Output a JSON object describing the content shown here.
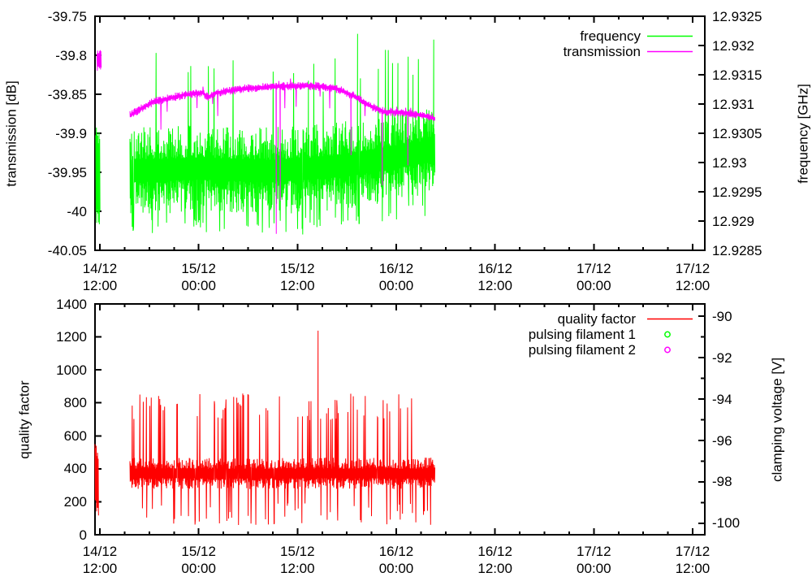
{
  "page": {
    "background": "#ffffff"
  },
  "colors": {
    "frequency": "#00ff00",
    "transmission": "#ff00ff",
    "quality_factor": "#ff0000",
    "pulsing_filament_1": "#00ff00",
    "pulsing_filament_2": "#ff00ff",
    "axis": "#000000"
  },
  "chart_data": [
    {
      "type": "line",
      "panel": "top",
      "title": "",
      "ylabel": "transmission [dB]",
      "y2label": "frequency [GHz]",
      "ylim": [
        -40.05,
        -39.75
      ],
      "y2lim": [
        12.9285,
        12.9325
      ],
      "yticks": [
        "-39.75",
        "-39.8",
        "-39.85",
        "-39.9",
        "-39.95",
        "-40",
        "-40.05"
      ],
      "y2ticks": [
        "12.9325",
        "12.932",
        "12.9315",
        "12.931",
        "12.9305",
        "12.93",
        "12.9295",
        "12.929",
        "12.9285"
      ],
      "xticks": [
        [
          "14/12",
          "12:00"
        ],
        [
          "15/12",
          "00:00"
        ],
        [
          "15/12",
          "12:00"
        ],
        [
          "16/12",
          "00:00"
        ],
        [
          "16/12",
          "12:00"
        ],
        [
          "17/12",
          "00:00"
        ],
        [
          "17/12",
          "12:00"
        ]
      ],
      "x_minor_per_major": 3,
      "grid": false,
      "legend_position": "top-right-inside",
      "legend": [
        {
          "label": "frequency",
          "style": "line",
          "color": "#00ff00"
        },
        {
          "label": "transmission",
          "style": "line",
          "color": "#ff00ff"
        }
      ],
      "series": [
        {
          "name": "frequency",
          "axis": "y2",
          "color": "#00ff00",
          "burst": {
            "hours": [
              -0.5,
              0.05
            ],
            "range": [
              12.9289,
              12.9307
            ]
          },
          "hours": [
            3.65,
            40.7
          ],
          "center_points": [
            [
              3.65,
              12.92985
            ],
            [
              12,
              12.9299
            ],
            [
              20,
              12.92985
            ],
            [
              28,
              12.92992
            ],
            [
              31,
              12.92998
            ],
            [
              34,
              12.93005
            ],
            [
              37,
              12.93012
            ],
            [
              40.7,
              12.9302
            ]
          ],
          "noise": {
            "halfwidth": 0.00075,
            "base": 0.25,
            "pow": 1.6,
            "p_up": 0.025,
            "up_mul": [
              1.7,
              2.7
            ],
            "p_down": 0.05,
            "down_mul": [
              1.1,
              1.5
            ]
          },
          "peaks": [
            [
              25.3,
              12.9314
            ],
            [
              31.3,
              12.9322
            ],
            [
              33.8,
              12.9316
            ],
            [
              36.2,
              12.9317
            ],
            [
              38.0,
              12.9315
            ],
            [
              40.55,
              12.9321
            ]
          ]
        },
        {
          "name": "transmission",
          "axis": "y1",
          "color": "#ff00ff",
          "burst": {
            "hours": [
              -0.35,
              0.2
            ],
            "range": [
              -39.82,
              -39.793
            ]
          },
          "hours": [
            3.65,
            40.7
          ],
          "center_points": [
            [
              3.65,
              -39.877
            ],
            [
              5.1,
              -39.868
            ],
            [
              6.6,
              -39.859
            ],
            [
              8.1,
              -39.856
            ],
            [
              10.1,
              -39.851
            ],
            [
              12.5,
              -39.848
            ],
            [
              13.2,
              -39.854
            ],
            [
              14.1,
              -39.848
            ],
            [
              17.5,
              -39.843
            ],
            [
              21.4,
              -39.84
            ],
            [
              25.8,
              -39.839
            ],
            [
              28.8,
              -39.843
            ],
            [
              30.8,
              -39.852
            ],
            [
              32.7,
              -39.864
            ],
            [
              34.4,
              -39.872
            ],
            [
              37.2,
              -39.874
            ],
            [
              39.2,
              -39.877
            ],
            [
              40.7,
              -39.881
            ]
          ],
          "noise": {
            "halfwidth": 0.0055,
            "base": 0.3,
            "pow": 2.0,
            "p_up": 0.004,
            "up_mul": [
              1.2,
              1.8
            ],
            "p_down": 0.01,
            "down_mul": [
              2,
              7
            ]
          },
          "peaks": [
            [
              21.4,
              -40.029
            ],
            [
              21.9,
              -39.986
            ],
            [
              30.5,
              -39.928
            ],
            [
              34.3,
              -39.967
            ],
            [
              37.4,
              -39.941
            ]
          ]
        }
      ]
    },
    {
      "type": "line",
      "panel": "bottom",
      "title": "",
      "ylabel": "quality factor",
      "y2label": "clamping voltage [V]",
      "ylim": [
        0,
        1400
      ],
      "y2lim": [
        -100.55,
        -89.41
      ],
      "yticks": [
        "1400",
        "1200",
        "1000",
        "800",
        "600",
        "400",
        "200",
        "0"
      ],
      "y2ticks": [
        "-90",
        "-92",
        "-94",
        "-96",
        "-98",
        "-100"
      ],
      "y2minor": [
        -91,
        -93,
        -95,
        -97,
        -99
      ],
      "xticks": [
        [
          "14/12",
          "12:00"
        ],
        [
          "15/12",
          "00:00"
        ],
        [
          "15/12",
          "12:00"
        ],
        [
          "16/12",
          "00:00"
        ],
        [
          "16/12",
          "12:00"
        ],
        [
          "17/12",
          "00:00"
        ],
        [
          "17/12",
          "12:00"
        ]
      ],
      "x_minor_per_major": 3,
      "grid": false,
      "legend_position": "top-right-inside",
      "legend": [
        {
          "label": "quality factor",
          "style": "line",
          "color": "#ff0000"
        },
        {
          "label": "pulsing filament 1",
          "style": "circle",
          "color": "#00ff00"
        },
        {
          "label": "pulsing filament 2",
          "style": "circle",
          "color": "#ff00ff"
        }
      ],
      "series": [
        {
          "name": "quality factor",
          "axis": "y1",
          "color": "#ff0000",
          "burst": {
            "hours": [
              -0.6,
              -0.15
            ],
            "range": [
              110,
              560
            ]
          },
          "hours": [
            3.65,
            40.7
          ],
          "center_points": [
            [
              3.65,
              372
            ],
            [
              40.7,
              372
            ]
          ],
          "noise": {
            "halfwidth": 95,
            "base": 0.3,
            "pow": 1.7,
            "p_up": 0.06,
            "up_mul": [
              3.4,
              5.1
            ],
            "p_down": 0.05,
            "down_mul": [
              1.9,
              3.3
            ]
          },
          "peaks": [
            [
              26.5,
              1238
            ]
          ]
        },
        {
          "name": "pulsing filament 1",
          "axis": "y2",
          "color": "#00ff00",
          "points": []
        },
        {
          "name": "pulsing filament 2",
          "axis": "y2",
          "color": "#ff00ff",
          "points": []
        }
      ]
    }
  ]
}
